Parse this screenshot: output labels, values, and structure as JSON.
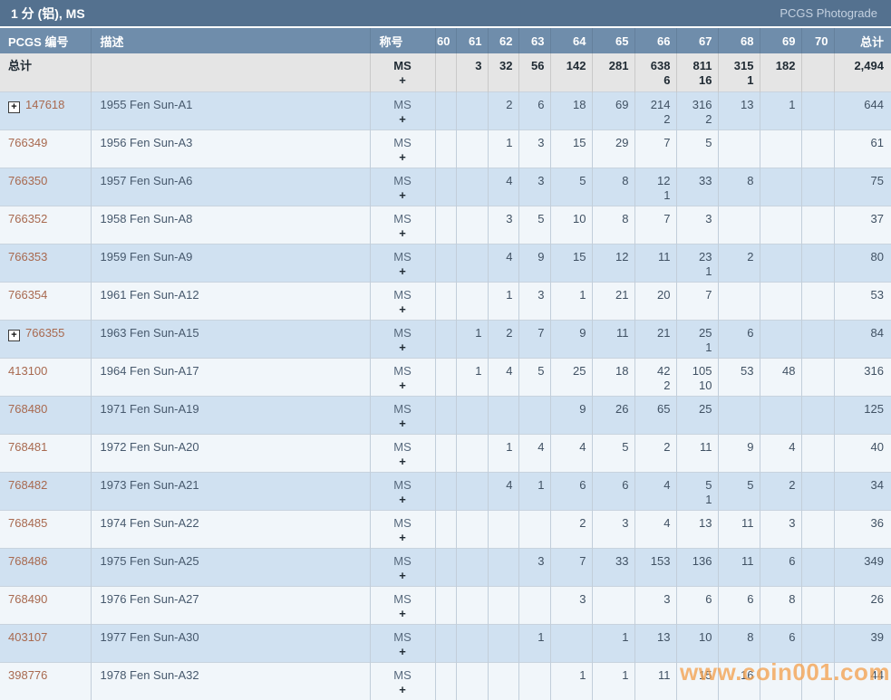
{
  "page": {
    "title": "1 分 (铝), MS",
    "photograde_link": "PCGS Photograde",
    "watermark": "www.coin001.com"
  },
  "colors": {
    "title_bar": "#54718f",
    "header_bar": "#6f8dab",
    "totals_row_bg": "#e5e5e5",
    "row_blue": "#d0e1f1",
    "row_light": "#f1f6fa",
    "pcgs_link": "#a8694f",
    "watermark_orange": "#f3a250"
  },
  "table": {
    "columns": [
      "PCGS 编号",
      "描述",
      "称号",
      "60",
      "61",
      "62",
      "63",
      "64",
      "65",
      "66",
      "67",
      "68",
      "69",
      "70",
      "总计"
    ],
    "totals_row": {
      "label": "总计",
      "designation": [
        "MS",
        "+"
      ],
      "grades": [
        [],
        [
          "3"
        ],
        [
          "32"
        ],
        [
          "56"
        ],
        [
          "142"
        ],
        [
          "281"
        ],
        [
          "638",
          "6"
        ],
        [
          "811",
          "16"
        ],
        [
          "315",
          "1"
        ],
        [
          "182"
        ],
        []
      ],
      "total": "2,494"
    },
    "rows": [
      {
        "pcgs": "147618",
        "expandable": true,
        "desc": "1955 Fen Sun-A1",
        "designation": [
          "MS",
          "+"
        ],
        "grades": [
          [],
          [],
          [
            "2"
          ],
          [
            "6"
          ],
          [
            "18"
          ],
          [
            "69"
          ],
          [
            "214",
            "2"
          ],
          [
            "316",
            "2"
          ],
          [
            "13"
          ],
          [
            "1"
          ],
          []
        ],
        "total": "644"
      },
      {
        "pcgs": "766349",
        "expandable": false,
        "desc": "1956 Fen Sun-A3",
        "designation": [
          "MS",
          "+"
        ],
        "grades": [
          [],
          [],
          [
            "1"
          ],
          [
            "3"
          ],
          [
            "15"
          ],
          [
            "29"
          ],
          [
            "7"
          ],
          [
            "5"
          ],
          [],
          [],
          []
        ],
        "total": "61"
      },
      {
        "pcgs": "766350",
        "expandable": false,
        "desc": "1957 Fen Sun-A6",
        "designation": [
          "MS",
          "+"
        ],
        "grades": [
          [],
          [],
          [
            "4"
          ],
          [
            "3"
          ],
          [
            "5"
          ],
          [
            "8"
          ],
          [
            "12",
            "1"
          ],
          [
            "33"
          ],
          [
            "8"
          ],
          [],
          []
        ],
        "total": "75"
      },
      {
        "pcgs": "766352",
        "expandable": false,
        "desc": "1958 Fen Sun-A8",
        "designation": [
          "MS",
          "+"
        ],
        "grades": [
          [],
          [],
          [
            "3"
          ],
          [
            "5"
          ],
          [
            "10"
          ],
          [
            "8"
          ],
          [
            "7"
          ],
          [
            "3"
          ],
          [],
          [],
          []
        ],
        "total": "37"
      },
      {
        "pcgs": "766353",
        "expandable": false,
        "desc": "1959 Fen Sun-A9",
        "designation": [
          "MS",
          "+"
        ],
        "grades": [
          [],
          [],
          [
            "4"
          ],
          [
            "9"
          ],
          [
            "15"
          ],
          [
            "12"
          ],
          [
            "11"
          ],
          [
            "23",
            "1"
          ],
          [
            "2"
          ],
          [],
          []
        ],
        "total": "80"
      },
      {
        "pcgs": "766354",
        "expandable": false,
        "desc": "1961 Fen Sun-A12",
        "designation": [
          "MS",
          "+"
        ],
        "grades": [
          [],
          [],
          [
            "1"
          ],
          [
            "3"
          ],
          [
            "1"
          ],
          [
            "21"
          ],
          [
            "20"
          ],
          [
            "7"
          ],
          [],
          [],
          []
        ],
        "total": "53"
      },
      {
        "pcgs": "766355",
        "expandable": true,
        "desc": "1963 Fen Sun-A15",
        "designation": [
          "MS",
          "+"
        ],
        "grades": [
          [],
          [
            "1"
          ],
          [
            "2"
          ],
          [
            "7"
          ],
          [
            "9"
          ],
          [
            "11"
          ],
          [
            "21"
          ],
          [
            "25",
            "1"
          ],
          [
            "6"
          ],
          [],
          []
        ],
        "total": "84"
      },
      {
        "pcgs": "413100",
        "expandable": false,
        "desc": "1964 Fen Sun-A17",
        "designation": [
          "MS",
          "+"
        ],
        "grades": [
          [],
          [
            "1"
          ],
          [
            "4"
          ],
          [
            "5"
          ],
          [
            "25"
          ],
          [
            "18"
          ],
          [
            "42",
            "2"
          ],
          [
            "105",
            "10"
          ],
          [
            "53"
          ],
          [
            "48"
          ],
          []
        ],
        "total": "316"
      },
      {
        "pcgs": "768480",
        "expandable": false,
        "desc": "1971 Fen Sun-A19",
        "designation": [
          "MS",
          "+"
        ],
        "grades": [
          [],
          [],
          [],
          [],
          [
            "9"
          ],
          [
            "26"
          ],
          [
            "65"
          ],
          [
            "25"
          ],
          [],
          [],
          []
        ],
        "total": "125"
      },
      {
        "pcgs": "768481",
        "expandable": false,
        "desc": "1972 Fen Sun-A20",
        "designation": [
          "MS",
          "+"
        ],
        "grades": [
          [],
          [],
          [
            "1"
          ],
          [
            "4"
          ],
          [
            "4"
          ],
          [
            "5"
          ],
          [
            "2"
          ],
          [
            "11"
          ],
          [
            "9"
          ],
          [
            "4"
          ],
          []
        ],
        "total": "40"
      },
      {
        "pcgs": "768482",
        "expandable": false,
        "desc": "1973 Fen Sun-A21",
        "designation": [
          "MS",
          "+"
        ],
        "grades": [
          [],
          [],
          [
            "4"
          ],
          [
            "1"
          ],
          [
            "6"
          ],
          [
            "6"
          ],
          [
            "4"
          ],
          [
            "5",
            "1"
          ],
          [
            "5"
          ],
          [
            "2"
          ],
          []
        ],
        "total": "34"
      },
      {
        "pcgs": "768485",
        "expandable": false,
        "desc": "1974 Fen Sun-A22",
        "designation": [
          "MS",
          "+"
        ],
        "grades": [
          [],
          [],
          [],
          [],
          [
            "2"
          ],
          [
            "3"
          ],
          [
            "4"
          ],
          [
            "13"
          ],
          [
            "11"
          ],
          [
            "3"
          ],
          []
        ],
        "total": "36"
      },
      {
        "pcgs": "768486",
        "expandable": false,
        "desc": "1975 Fen Sun-A25",
        "designation": [
          "MS",
          "+"
        ],
        "grades": [
          [],
          [],
          [],
          [
            "3"
          ],
          [
            "7"
          ],
          [
            "33"
          ],
          [
            "153"
          ],
          [
            "136"
          ],
          [
            "11"
          ],
          [
            "6"
          ],
          []
        ],
        "total": "349"
      },
      {
        "pcgs": "768490",
        "expandable": false,
        "desc": "1976 Fen Sun-A27",
        "designation": [
          "MS",
          "+"
        ],
        "grades": [
          [],
          [],
          [],
          [],
          [
            "3"
          ],
          [],
          [
            "3"
          ],
          [
            "6"
          ],
          [
            "6"
          ],
          [
            "8"
          ],
          []
        ],
        "total": "26"
      },
      {
        "pcgs": "403107",
        "expandable": false,
        "desc": "1977 Fen Sun-A30",
        "designation": [
          "MS",
          "+"
        ],
        "grades": [
          [],
          [],
          [],
          [
            "1"
          ],
          [],
          [
            "1"
          ],
          [
            "13"
          ],
          [
            "10"
          ],
          [
            "8"
          ],
          [
            "6"
          ],
          []
        ],
        "total": "39"
      },
      {
        "pcgs": "398776",
        "expandable": false,
        "desc": "1978 Fen Sun-A32",
        "designation": [
          "MS",
          "+"
        ],
        "grades": [
          [],
          [],
          [],
          [],
          [
            "1"
          ],
          [
            "1"
          ],
          [
            "11"
          ],
          [
            "15"
          ],
          [
            "16"
          ],
          [],
          []
        ],
        "total": "44"
      }
    ]
  }
}
